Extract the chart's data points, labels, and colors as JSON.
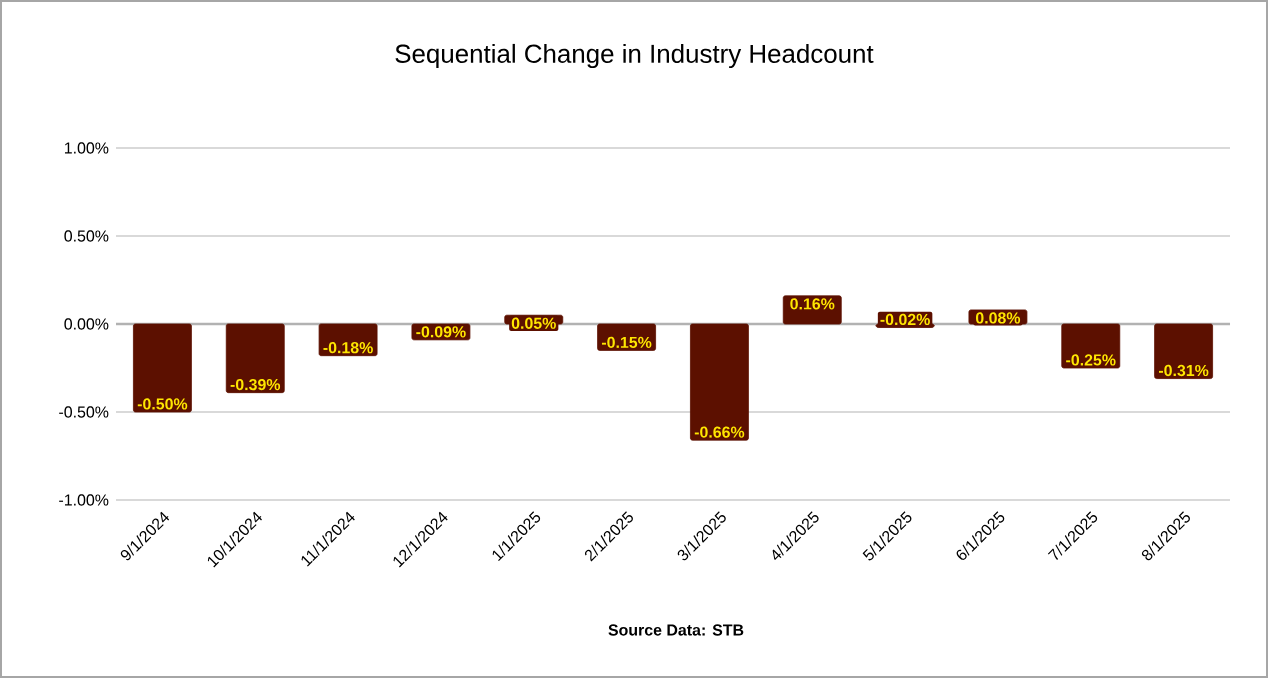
{
  "chart_data": {
    "type": "bar",
    "title": "Sequential Change in Industry Headcount",
    "categories": [
      "9/1/2024",
      "10/1/2024",
      "11/1/2024",
      "12/1/2024",
      "1/1/2025",
      "2/1/2025",
      "3/1/2025",
      "4/1/2025",
      "5/1/2025",
      "6/1/2025",
      "7/1/2025",
      "8/1/2025"
    ],
    "values": [
      -0.5,
      -0.39,
      -0.18,
      -0.09,
      0.05,
      -0.15,
      -0.66,
      0.16,
      -0.02,
      0.08,
      -0.25,
      -0.31
    ],
    "value_labels": [
      "-0.50%",
      "-0.39%",
      "-0.18%",
      "-0.09%",
      "0.05%",
      "-0.15%",
      "-0.66%",
      "0.16%",
      "-0.02%",
      "0.08%",
      "-0.25%",
      "-0.31%"
    ],
    "color": "#5c1000",
    "ylim": [
      -1,
      1
    ],
    "yticks": [
      {
        "value": -1,
        "label": "-1.00%"
      },
      {
        "value": -0.5,
        "label": "-0.50%"
      },
      {
        "value": 0,
        "label": "0.00%"
      },
      {
        "value": 0.5,
        "label": "0.50%"
      },
      {
        "value": 1,
        "label": "1.00%"
      }
    ],
    "grid": "y",
    "annotations": [
      "Source Data: STB"
    ]
  }
}
